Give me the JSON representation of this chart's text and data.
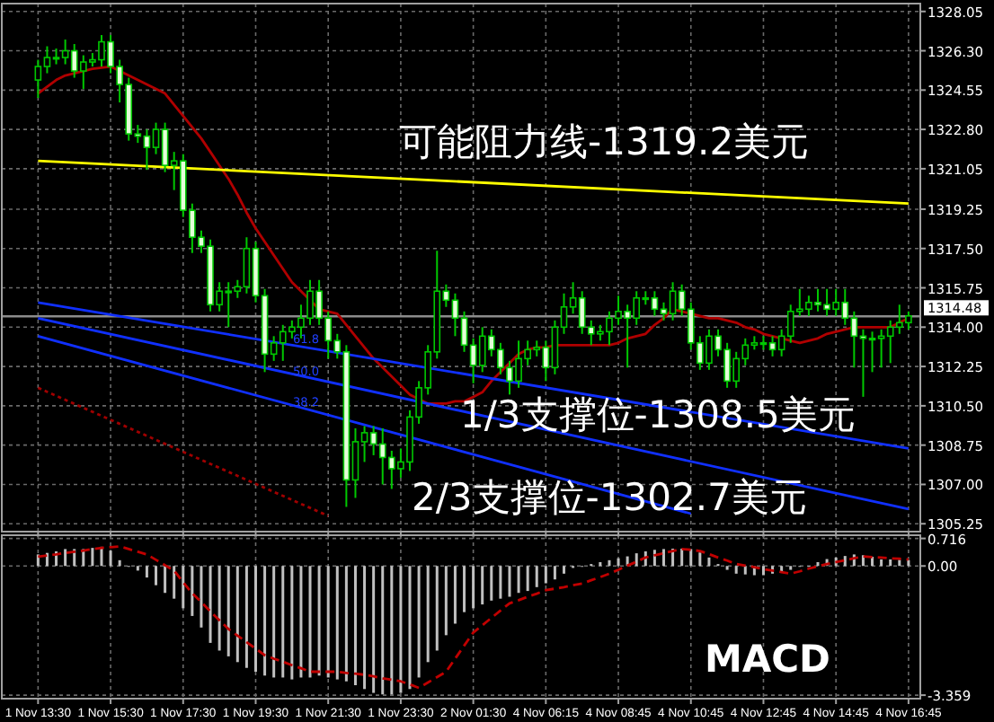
{
  "chart_data": [
    {
      "type": "candlestick",
      "color": "#00c800",
      "grid": true,
      "tick_labels": "y",
      "categories": [
        "1 Nov 13:30",
        null,
        null,
        null,
        null,
        null,
        null,
        null,
        "1 Nov 15:30",
        null,
        null,
        null,
        null,
        null,
        null,
        null,
        "1 Nov 17:30",
        null,
        null,
        null,
        null,
        null,
        null,
        null,
        "1 Nov 19:30",
        null,
        null,
        null,
        null,
        null,
        null,
        null,
        "1 Nov 21:30",
        null,
        null,
        null,
        null,
        null,
        null,
        null,
        "1 Nov 23:30",
        null,
        null,
        null,
        null,
        null,
        null,
        null,
        "2 Nov 01:30",
        null,
        null,
        null,
        null,
        null,
        null,
        null,
        "4 Nov 06:15",
        null,
        null,
        null,
        null,
        null,
        null,
        null,
        "4 Nov 08:45",
        null,
        null,
        null,
        null,
        null,
        null,
        null,
        "4 Nov 10:45",
        null,
        null,
        null,
        null,
        null,
        null,
        null,
        "4 Nov 12:45",
        null,
        null,
        null,
        null,
        null,
        null,
        null,
        "4 Nov 14:45",
        null,
        null,
        null,
        null,
        null,
        null,
        null,
        "4 Nov 16:45"
      ],
      "ylim": [
        1304.9,
        1328.4
      ],
      "yticks": [
        1328.05,
        {
          "value": 1326.3,
          "label": "1326.30"
        },
        1324.55,
        {
          "value": 1322.8,
          "label": "1322.80"
        },
        1321.05,
        1319.25,
        {
          "value": 1317.5,
          "label": "1317.50"
        },
        1315.75,
        {
          "value": 1314.0,
          "label": "1314.00"
        },
        1312.25,
        {
          "value": 1310.5,
          "label": "1310.50"
        },
        1308.75,
        {
          "value": 1307.0,
          "label": "1307.00"
        },
        1305.25
      ],
      "ohlc": [
        [
          1325.0,
          1325.9,
          1324.2,
          1325.6
        ],
        [
          1325.6,
          1326.5,
          1325.3,
          1326.0
        ],
        [
          1326.0,
          1326.4,
          1325.7,
          1326.0
        ],
        [
          1326.0,
          1326.8,
          1325.7,
          1326.3
        ],
        [
          1326.3,
          1326.6,
          1325.1,
          1325.4
        ],
        [
          1325.4,
          1326.1,
          1324.6,
          1325.8
        ],
        [
          1325.8,
          1326.2,
          1325.6,
          1325.9
        ],
        [
          1325.9,
          1327.0,
          1325.6,
          1326.7
        ],
        [
          1326.7,
          1327.0,
          1325.3,
          1325.6
        ],
        [
          1325.6,
          1325.9,
          1324.0,
          1324.8
        ],
        [
          1324.8,
          1325.1,
          1322.3,
          1322.6
        ],
        [
          1322.6,
          1323.0,
          1322.2,
          1322.5
        ],
        [
          1322.5,
          1322.8,
          1321.0,
          1322.0
        ],
        [
          1322.0,
          1323.1,
          1321.7,
          1322.8
        ],
        [
          1322.8,
          1323.1,
          1320.9,
          1321.2
        ],
        [
          1321.2,
          1321.8,
          1320.1,
          1321.4
        ],
        [
          1321.4,
          1321.7,
          1318.9,
          1319.2
        ],
        [
          1319.2,
          1319.5,
          1317.3,
          1318.0
        ],
        [
          1318.0,
          1318.3,
          1317.3,
          1317.6
        ],
        [
          1317.6,
          1317.9,
          1314.7,
          1315.0
        ],
        [
          1315.0,
          1316.0,
          1314.7,
          1315.6
        ],
        [
          1315.6,
          1316.0,
          1314.0,
          1315.6
        ],
        [
          1315.6,
          1316.1,
          1315.3,
          1315.8
        ],
        [
          1315.8,
          1318.0,
          1315.5,
          1317.5
        ],
        [
          1317.5,
          1317.8,
          1315.1,
          1315.4
        ],
        [
          1315.4,
          1315.7,
          1312.0,
          1312.8
        ],
        [
          1312.8,
          1313.6,
          1312.5,
          1313.3
        ],
        [
          1313.3,
          1314.1,
          1312.5,
          1313.8
        ],
        [
          1313.8,
          1314.3,
          1313.5,
          1314.0
        ],
        [
          1314.0,
          1315.0,
          1313.5,
          1314.4
        ],
        [
          1314.4,
          1316.1,
          1314.1,
          1315.6
        ],
        [
          1315.6,
          1316.1,
          1314.1,
          1314.4
        ],
        [
          1314.4,
          1314.7,
          1312.6,
          1313.4
        ],
        [
          1313.4,
          1313.7,
          1312.6,
          1312.9
        ],
        [
          1312.9,
          1313.2,
          1306.0,
          1307.2
        ],
        [
          1307.2,
          1309.5,
          1306.4,
          1308.9
        ],
        [
          1308.9,
          1309.6,
          1308.0,
          1309.3
        ],
        [
          1309.3,
          1309.6,
          1308.3,
          1308.8
        ],
        [
          1308.8,
          1309.5,
          1307.0,
          1308.2
        ],
        [
          1308.2,
          1308.5,
          1306.8,
          1307.7
        ],
        [
          1307.7,
          1308.6,
          1307.3,
          1308.0
        ],
        [
          1308.0,
          1310.3,
          1307.6,
          1310.0
        ],
        [
          1310.0,
          1311.6,
          1309.7,
          1311.3
        ],
        [
          1311.3,
          1313.2,
          1311.0,
          1312.9
        ],
        [
          1312.9,
          1317.4,
          1312.6,
          1315.6
        ],
        [
          1315.6,
          1315.9,
          1314.9,
          1315.2
        ],
        [
          1315.2,
          1315.5,
          1313.6,
          1314.4
        ],
        [
          1314.4,
          1314.7,
          1312.9,
          1313.2
        ],
        [
          1313.2,
          1313.5,
          1311.5,
          1312.3
        ],
        [
          1312.3,
          1314.0,
          1312.0,
          1313.6
        ],
        [
          1313.6,
          1313.9,
          1312.7,
          1313.0
        ],
        [
          1313.0,
          1313.3,
          1311.9,
          1312.2
        ],
        [
          1312.2,
          1312.5,
          1311.0,
          1311.6
        ],
        [
          1311.6,
          1313.4,
          1311.3,
          1312.6
        ],
        [
          1312.6,
          1313.4,
          1312.3,
          1313.0
        ],
        [
          1313.0,
          1313.4,
          1312.7,
          1313.1
        ],
        [
          1313.1,
          1313.4,
          1311.6,
          1312.2
        ],
        [
          1312.2,
          1314.3,
          1311.9,
          1314.0
        ],
        [
          1314.0,
          1315.5,
          1313.7,
          1314.9
        ],
        [
          1314.9,
          1316.0,
          1314.6,
          1315.3
        ],
        [
          1315.3,
          1315.6,
          1313.7,
          1314.0
        ],
        [
          1314.0,
          1314.3,
          1313.2,
          1313.7
        ],
        [
          1313.7,
          1314.1,
          1313.4,
          1313.8
        ],
        [
          1313.8,
          1314.7,
          1313.2,
          1314.4
        ],
        [
          1314.4,
          1315.4,
          1314.1,
          1314.7
        ],
        [
          1314.7,
          1315.0,
          1312.2,
          1314.4
        ],
        [
          1314.4,
          1315.6,
          1314.1,
          1315.3
        ],
        [
          1315.3,
          1315.6,
          1315.0,
          1315.3
        ],
        [
          1315.3,
          1315.6,
          1314.5,
          1314.8
        ],
        [
          1314.8,
          1315.1,
          1314.3,
          1314.6
        ],
        [
          1314.6,
          1316.0,
          1314.3,
          1315.6
        ],
        [
          1315.6,
          1315.9,
          1314.5,
          1314.8
        ],
        [
          1314.8,
          1315.1,
          1313.0,
          1313.3
        ],
        [
          1313.3,
          1313.6,
          1312.1,
          1312.4
        ],
        [
          1312.4,
          1313.9,
          1312.1,
          1313.6
        ],
        [
          1313.6,
          1313.9,
          1312.7,
          1313.0
        ],
        [
          1313.0,
          1313.3,
          1311.3,
          1311.6
        ],
        [
          1311.6,
          1312.9,
          1311.3,
          1312.6
        ],
        [
          1312.6,
          1313.5,
          1312.3,
          1313.2
        ],
        [
          1313.2,
          1313.6,
          1313.0,
          1313.3
        ],
        [
          1313.3,
          1313.6,
          1313.0,
          1313.3
        ],
        [
          1313.3,
          1313.6,
          1312.7,
          1313.0
        ],
        [
          1313.0,
          1313.9,
          1312.7,
          1313.6
        ],
        [
          1313.6,
          1315.0,
          1313.3,
          1314.7
        ],
        [
          1314.7,
          1315.7,
          1314.5,
          1314.8
        ],
        [
          1314.8,
          1315.4,
          1314.5,
          1315.1
        ],
        [
          1315.1,
          1315.7,
          1314.7,
          1315.0
        ],
        [
          1315.0,
          1315.7,
          1314.5,
          1314.8
        ],
        [
          1314.8,
          1315.7,
          1314.5,
          1315.1
        ],
        [
          1315.1,
          1315.7,
          1314.1,
          1314.4
        ],
        [
          1314.4,
          1314.7,
          1312.2,
          1313.6
        ],
        [
          1313.6,
          1313.9,
          1310.9,
          1313.5
        ],
        [
          1313.5,
          1313.8,
          1312.0,
          1313.5
        ],
        [
          1313.5,
          1313.9,
          1312.2,
          1313.6
        ],
        [
          1313.6,
          1314.3,
          1312.4,
          1314.0
        ],
        [
          1314.0,
          1315.0,
          1313.7,
          1314.2
        ],
        [
          1314.2,
          1314.7,
          1313.9,
          1314.5
        ]
      ],
      "series": [
        {
          "type": "line",
          "color": "#b00000",
          "values": [
            1324.4,
            1324.7,
            1325.0,
            1325.2,
            1325.3,
            1325.4,
            1325.5,
            1325.55,
            1325.6,
            1325.4,
            1325.2,
            1325.0,
            1324.8,
            1324.6,
            1324.4,
            1323.9,
            1323.4,
            1322.9,
            1322.4,
            1321.8,
            1321.2,
            1320.6,
            1319.9,
            1319.1,
            1318.4,
            1317.8,
            1317.2,
            1316.6,
            1316.0,
            1315.6,
            1315.2,
            1314.8,
            1314.7,
            1314.6,
            1314.1,
            1313.6,
            1313.1,
            1312.6,
            1312.2,
            1311.8,
            1311.4,
            1311.0,
            1310.8,
            1310.6,
            1310.6,
            1310.6,
            1310.7,
            1310.7,
            1310.9,
            1311.1,
            1311.6,
            1312.0,
            1312.4,
            1312.8,
            1313.0,
            1313.1,
            1313.1,
            1313.2,
            1313.2,
            1313.2,
            1313.2,
            1313.2,
            1313.2,
            1313.2,
            1313.3,
            1313.5,
            1313.6,
            1313.7,
            1314.1,
            1314.4,
            1314.8,
            1314.7,
            1314.6,
            1314.5,
            1314.4,
            1314.4,
            1314.3,
            1314.2,
            1314.0,
            1313.9,
            1313.7,
            1313.6,
            1313.5,
            1313.4,
            1313.3,
            1313.4,
            1313.5,
            1313.7,
            1313.8,
            1313.9,
            1314.0,
            1314.0,
            1314.0,
            1314.0,
            1314.0,
            1314.2,
            1314.4
          ]
        },
        {
          "type": "line",
          "color": "#a00000",
          "line_style": "dotted",
          "x": [
            "1 Nov 13:30",
            "1 Nov 21:30"
          ],
          "values": [
            1311.3,
            1305.6
          ]
        },
        {
          "type": "line",
          "color": "#ffff00",
          "x": [
            "1 Nov 13:30",
            "4 Nov 16:45"
          ],
          "values": [
            1321.4,
            1319.5
          ]
        },
        {
          "type": "line",
          "color": "#1030ff",
          "x": [
            "1 Nov 13:30",
            "4 Nov 16:45"
          ],
          "values": [
            1315.1,
            1308.6
          ]
        },
        {
          "type": "line",
          "color": "#1030ff",
          "x": [
            "1 Nov 13:30",
            "4 Nov 16:45"
          ],
          "values": [
            1314.4,
            1305.9
          ]
        },
        {
          "type": "line",
          "color": "#1030ff",
          "x": [
            "1 Nov 13:30",
            "4 Nov 10:45"
          ],
          "values": [
            1313.6,
            1305.7
          ]
        }
      ],
      "ref_lines": [
        {
          "axis": "y",
          "value": 1314.48,
          "label": "1314.48",
          "color": "#8c8c8c"
        }
      ],
      "annotations": [
        "可能阻力线-1319.2美元",
        "1/3支撑位-1308.5美元",
        "2/3支撑位-1302.7美元",
        "61.8",
        "50.0",
        "38.2"
      ]
    },
    {
      "type": "bar",
      "grid": true,
      "categories": [
        "1 Nov 13:30",
        null,
        null,
        null,
        null,
        null,
        null,
        null,
        "1 Nov 15:30",
        null,
        null,
        null,
        null,
        null,
        null,
        null,
        "1 Nov 17:30",
        null,
        null,
        null,
        null,
        null,
        null,
        null,
        "1 Nov 19:30",
        null,
        null,
        null,
        null,
        null,
        null,
        null,
        "1 Nov 21:30",
        null,
        null,
        null,
        null,
        null,
        null,
        null,
        "1 Nov 23:30",
        null,
        null,
        null,
        null,
        null,
        null,
        null,
        "2 Nov 01:30",
        null,
        null,
        null,
        null,
        null,
        null,
        null,
        "4 Nov 06:15",
        null,
        null,
        null,
        null,
        null,
        null,
        null,
        "4 Nov 08:45",
        null,
        null,
        null,
        null,
        null,
        null,
        null,
        "4 Nov 10:45",
        null,
        null,
        null,
        null,
        null,
        null,
        null,
        "4 Nov 12:45",
        null,
        null,
        null,
        null,
        null,
        null,
        null,
        "4 Nov 14:45",
        null,
        null,
        null,
        null,
        null,
        null,
        null,
        "4 Nov 16:45"
      ],
      "ylim": [
        -3.45,
        0.8
      ],
      "yticks": [
        0.716,
        {
          "value": 0,
          "label": "0.00"
        },
        -3.359
      ],
      "series": [
        {
          "type": "bar",
          "color": "#c0c0c0",
          "values": [
            0.3,
            0.34,
            0.38,
            0.44,
            0.44,
            0.44,
            0.47,
            0.5,
            0.4,
            0.15,
            0.0,
            -0.12,
            -0.3,
            -0.5,
            -0.7,
            -0.85,
            -1.1,
            -1.3,
            -1.6,
            -2.0,
            -2.2,
            -2.35,
            -2.5,
            -2.65,
            -2.75,
            -2.85,
            -2.9,
            -2.9,
            -2.95,
            -2.9,
            -2.9,
            -2.85,
            -2.9,
            -2.95,
            -3.0,
            -3.1,
            -3.2,
            -3.3,
            -3.34,
            -3.34,
            -3.3,
            -3.2,
            -2.9,
            -2.5,
            -2.2,
            -1.8,
            -1.5,
            -1.2,
            -1.1,
            -1.0,
            -0.9,
            -0.85,
            -0.8,
            -0.7,
            -0.65,
            -0.55,
            -0.45,
            -0.35,
            -0.2,
            -0.05,
            0.0,
            0.05,
            0.1,
            0.15,
            0.2,
            0.25,
            0.33,
            0.38,
            0.42,
            0.44,
            0.45,
            0.45,
            0.44,
            0.35,
            0.22,
            0.05,
            -0.1,
            -0.2,
            -0.22,
            -0.24,
            -0.24,
            -0.2,
            -0.17,
            -0.1,
            -0.02,
            0.0,
            0.1,
            0.18,
            0.22,
            0.26,
            0.3,
            0.28,
            0.24,
            0.17,
            0.17,
            0.16,
            0.15
          ]
        },
        {
          "type": "line",
          "color": "#c00000",
          "line_style": "dashed",
          "values": [
            0.24,
            0.27,
            0.3,
            0.34,
            0.37,
            0.4,
            0.44,
            0.47,
            0.49,
            0.51,
            0.44,
            0.37,
            0.3,
            0.16,
            0.02,
            -0.12,
            -0.42,
            -0.71,
            -0.94,
            -1.18,
            -1.41,
            -1.64,
            -1.81,
            -1.98,
            -2.15,
            -2.32,
            -2.41,
            -2.49,
            -2.58,
            -2.66,
            -2.75,
            -2.75,
            -2.75,
            -2.75,
            -2.78,
            -2.8,
            -2.83,
            -2.87,
            -2.92,
            -2.96,
            -3.0,
            -3.08,
            -3.17,
            -3.03,
            -2.89,
            -2.75,
            -2.41,
            -2.07,
            -1.73,
            -1.54,
            -1.35,
            -1.16,
            -0.97,
            -0.89,
            -0.8,
            -0.72,
            -0.63,
            -0.59,
            -0.55,
            -0.5,
            -0.46,
            -0.37,
            -0.29,
            -0.2,
            -0.1,
            0.01,
            0.11,
            0.22,
            0.28,
            0.33,
            0.39,
            0.44,
            0.42,
            0.39,
            0.31,
            0.22,
            0.14,
            0.05,
            0.01,
            -0.03,
            -0.08,
            -0.12,
            -0.16,
            -0.2,
            -0.14,
            -0.07,
            -0.01,
            0.05,
            0.1,
            0.15,
            0.2,
            0.25,
            0.23,
            0.22,
            0.2,
            0.19,
            0.17
          ]
        }
      ],
      "annotations": [
        "MACD"
      ]
    }
  ]
}
